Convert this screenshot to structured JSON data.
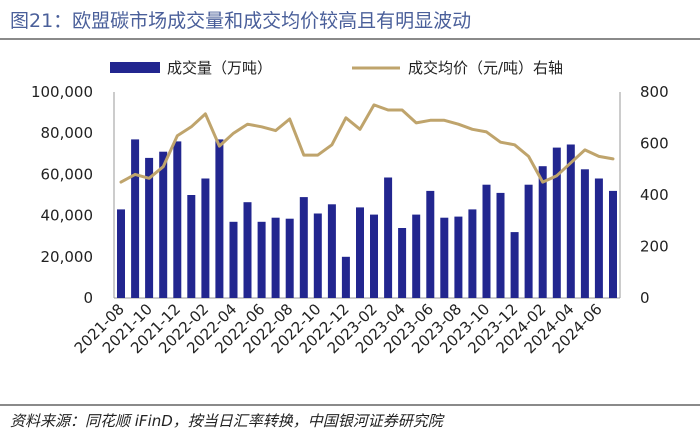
{
  "title": "图21：欧盟碳市场成交量和成交均价较高且有明显波动",
  "source": "资料来源：同花顺 iFinD，按当日汇率转换，中国银河证券研究院",
  "colors": {
    "bar": "#22268f",
    "line": "#bfa46c",
    "axis": "#999999"
  },
  "chart_data": {
    "type": "bar+line",
    "legend": [
      "成交量（万吨）",
      "成交均价（元/吨）右轴"
    ],
    "left_axis": {
      "ylim": [
        0,
        100000
      ],
      "ticks": [
        "0",
        "20,000",
        "40,000",
        "60,000",
        "80,000",
        "100,000"
      ]
    },
    "right_axis": {
      "ylim": [
        0,
        800
      ],
      "ticks": [
        "0",
        "200",
        "400",
        "600",
        "800"
      ]
    },
    "x_tick_labels": [
      "2021-08",
      "2021-10",
      "2021-12",
      "2022-02",
      "2022-04",
      "2022-06",
      "2022-08",
      "2022-10",
      "2022-12",
      "2023-02",
      "2023-04",
      "2023-06",
      "2023-08",
      "2023-10",
      "2023-12",
      "2024-02",
      "2024-04",
      "2024-06"
    ],
    "categories": [
      "2021-08",
      "2021-09",
      "2021-10",
      "2021-11",
      "2021-12",
      "2022-01",
      "2022-02",
      "2022-03",
      "2022-04",
      "2022-05",
      "2022-06",
      "2022-07",
      "2022-08",
      "2022-09",
      "2022-10",
      "2022-11",
      "2022-12",
      "2023-01",
      "2023-02",
      "2023-03",
      "2023-04",
      "2023-05",
      "2023-06",
      "2023-07",
      "2023-08",
      "2023-09",
      "2023-10",
      "2023-11",
      "2023-12",
      "2024-01",
      "2024-02",
      "2024-03",
      "2024-04",
      "2024-05",
      "2024-06",
      "2024-07"
    ],
    "series": [
      {
        "name": "成交量（万吨）",
        "axis": "left",
        "kind": "bar",
        "values": [
          43000,
          77000,
          68000,
          71000,
          76000,
          50000,
          58000,
          77000,
          37000,
          46500,
          37000,
          39000,
          38500,
          49000,
          41000,
          45500,
          20000,
          44000,
          40500,
          58500,
          34000,
          40500,
          52000,
          39000,
          39500,
          43000,
          55000,
          51000,
          32000,
          55000,
          64000,
          73000,
          74500,
          62500,
          58000,
          52000
        ]
      },
      {
        "name": "成交均价（元/吨）右轴",
        "axis": "right",
        "kind": "line",
        "values": [
          450,
          480,
          465,
          510,
          630,
          665,
          715,
          590,
          640,
          675,
          665,
          650,
          695,
          555,
          555,
          595,
          700,
          655,
          750,
          730,
          730,
          680,
          690,
          690,
          675,
          655,
          645,
          605,
          595,
          550,
          450,
          475,
          525,
          575,
          550,
          540
        ]
      }
    ]
  }
}
